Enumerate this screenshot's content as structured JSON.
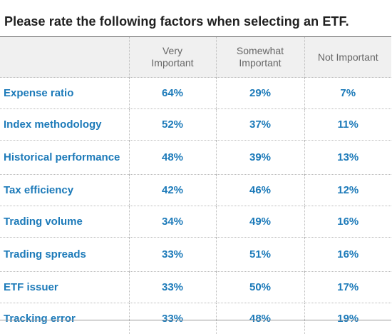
{
  "chart_data": {
    "type": "table",
    "title": "Please rate the following factors when selecting an ETF.",
    "columns": [
      {
        "line1": "Very",
        "line2": "Important"
      },
      {
        "line1": "Somewhat",
        "line2": "Important"
      },
      {
        "line1": "",
        "line2": "Not Important"
      }
    ],
    "rows": [
      {
        "label": "Expense ratio",
        "values": [
          "64%",
          "29%",
          "7%"
        ]
      },
      {
        "label": "Index methodology",
        "values": [
          "52%",
          "37%",
          "11%"
        ]
      },
      {
        "label": "Historical performance",
        "values": [
          "48%",
          "39%",
          "13%"
        ]
      },
      {
        "label": "Tax efficiency",
        "values": [
          "42%",
          "46%",
          "12%"
        ]
      },
      {
        "label": "Trading volume",
        "values": [
          "34%",
          "49%",
          "16%"
        ]
      },
      {
        "label": "Trading spreads",
        "values": [
          "33%",
          "51%",
          "16%"
        ]
      },
      {
        "label": "ETF issuer",
        "values": [
          "33%",
          "50%",
          "17%"
        ]
      },
      {
        "label": "Tracking error",
        "values": [
          "33%",
          "48%",
          "19%"
        ]
      }
    ],
    "colors": {
      "value_text": "#1c7ab9",
      "header_text": "#666666",
      "header_background": "#f0f0f0",
      "title_text": "#1f1f1f"
    }
  }
}
